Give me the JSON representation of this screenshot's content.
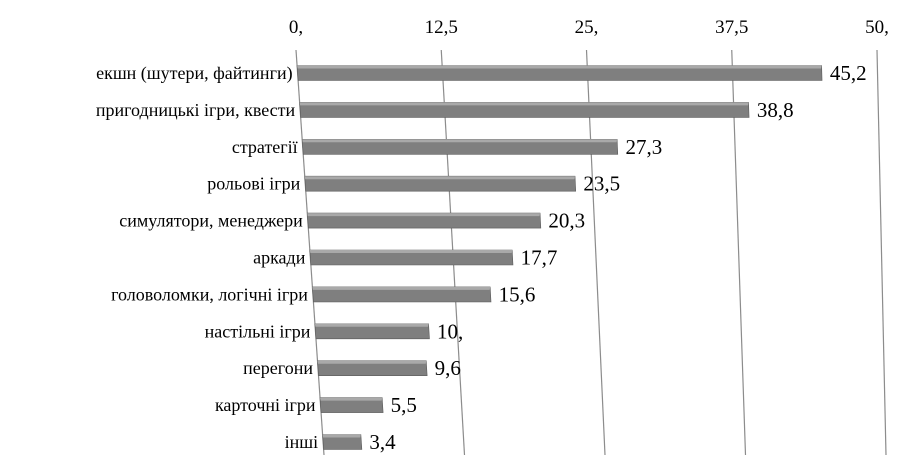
{
  "chart_data": {
    "type": "bar",
    "orientation": "horizontal",
    "title": "",
    "xlabel": "",
    "ylabel": "",
    "xlim": [
      0,
      50
    ],
    "tick_values": [
      0,
      12.5,
      25,
      37.5,
      50
    ],
    "tick_labels": [
      "0,",
      "12,5",
      "25,",
      "37,5",
      "50,"
    ],
    "grid": true,
    "legend": "none",
    "bar_color": "#7f7f7f",
    "categories": [
      "екшн (шутери, файтинги)",
      "пригодницькі ігри, квести",
      "стратегії",
      "рольові ігри",
      "симулятори, менеджери",
      "аркади",
      "головоломки, логічні ігри",
      "настільні ігри",
      "перегони",
      "карточні ігри",
      "інші"
    ],
    "values": [
      45.2,
      38.8,
      27.3,
      23.5,
      20.3,
      17.7,
      15.6,
      10,
      9.6,
      5.5,
      3.4
    ],
    "value_labels": [
      "45,2",
      "38,8",
      "27,3",
      "23,5",
      "20,3",
      "17,7",
      "15,6",
      "10,",
      "9,6",
      "5,5",
      "3,4"
    ]
  }
}
